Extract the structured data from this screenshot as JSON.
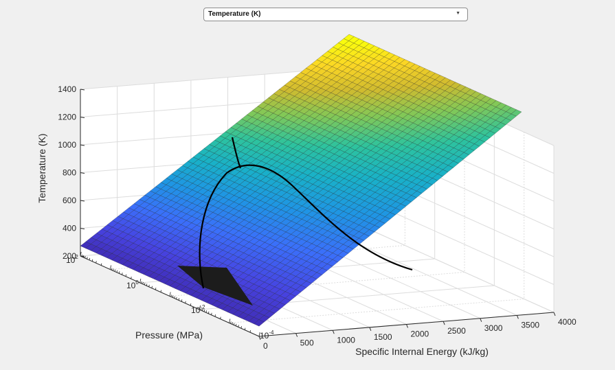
{
  "dropdown": {
    "selected": "Temperature (K)"
  },
  "chart_data": {
    "type": "surface3d",
    "title": "",
    "zlabel": "Temperature (K)",
    "xlabel": "Specific Internal Energy (kJ/kg)",
    "ylabel": "Pressure (MPa)",
    "xlim": [
      0,
      4000
    ],
    "xticks": [
      0,
      500,
      1000,
      1500,
      2000,
      2500,
      3000,
      3500,
      4000
    ],
    "xtick_labels": [
      "0",
      "500",
      "1000",
      "1500",
      "2000",
      "2500",
      "3000",
      "3500",
      "4000"
    ],
    "ylim_log10": [
      -4,
      2
    ],
    "yticks": [
      {
        "base": "10",
        "exp": "2"
      },
      {
        "base": "10",
        "exp": "0"
      },
      {
        "base": "10",
        "exp": "-2"
      },
      {
        "base": "10",
        "exp": "-4"
      }
    ],
    "zlim": [
      200,
      1400
    ],
    "zticks": [
      200,
      400,
      600,
      800,
      1000,
      1200,
      1400
    ],
    "ztick_labels": [
      "200",
      "400",
      "600",
      "800",
      "1000",
      "1200",
      "1400"
    ],
    "colormap": [
      "#3e26a8",
      "#4743e0",
      "#3b6ffa",
      "#1f95e4",
      "#19b1c8",
      "#2ec39d",
      "#81c858",
      "#d0bb2f",
      "#fbd625",
      "#f9fb0e"
    ],
    "surface_grid_u": 34,
    "surface_grid_v": 50,
    "surface_corners": [
      {
        "energy": 0,
        "pressure": 100,
        "temperature": 273
      },
      {
        "energy": 0,
        "pressure": 0.0001,
        "temperature": 273
      },
      {
        "energy": 3500,
        "pressure": 0.0001,
        "temperature": 1200
      },
      {
        "energy": 3500,
        "pressure": 100,
        "temperature": 1400
      }
    ],
    "saturation_dome_peak": {
      "energy": 2000,
      "pressure": 22,
      "temperature": 647
    }
  }
}
